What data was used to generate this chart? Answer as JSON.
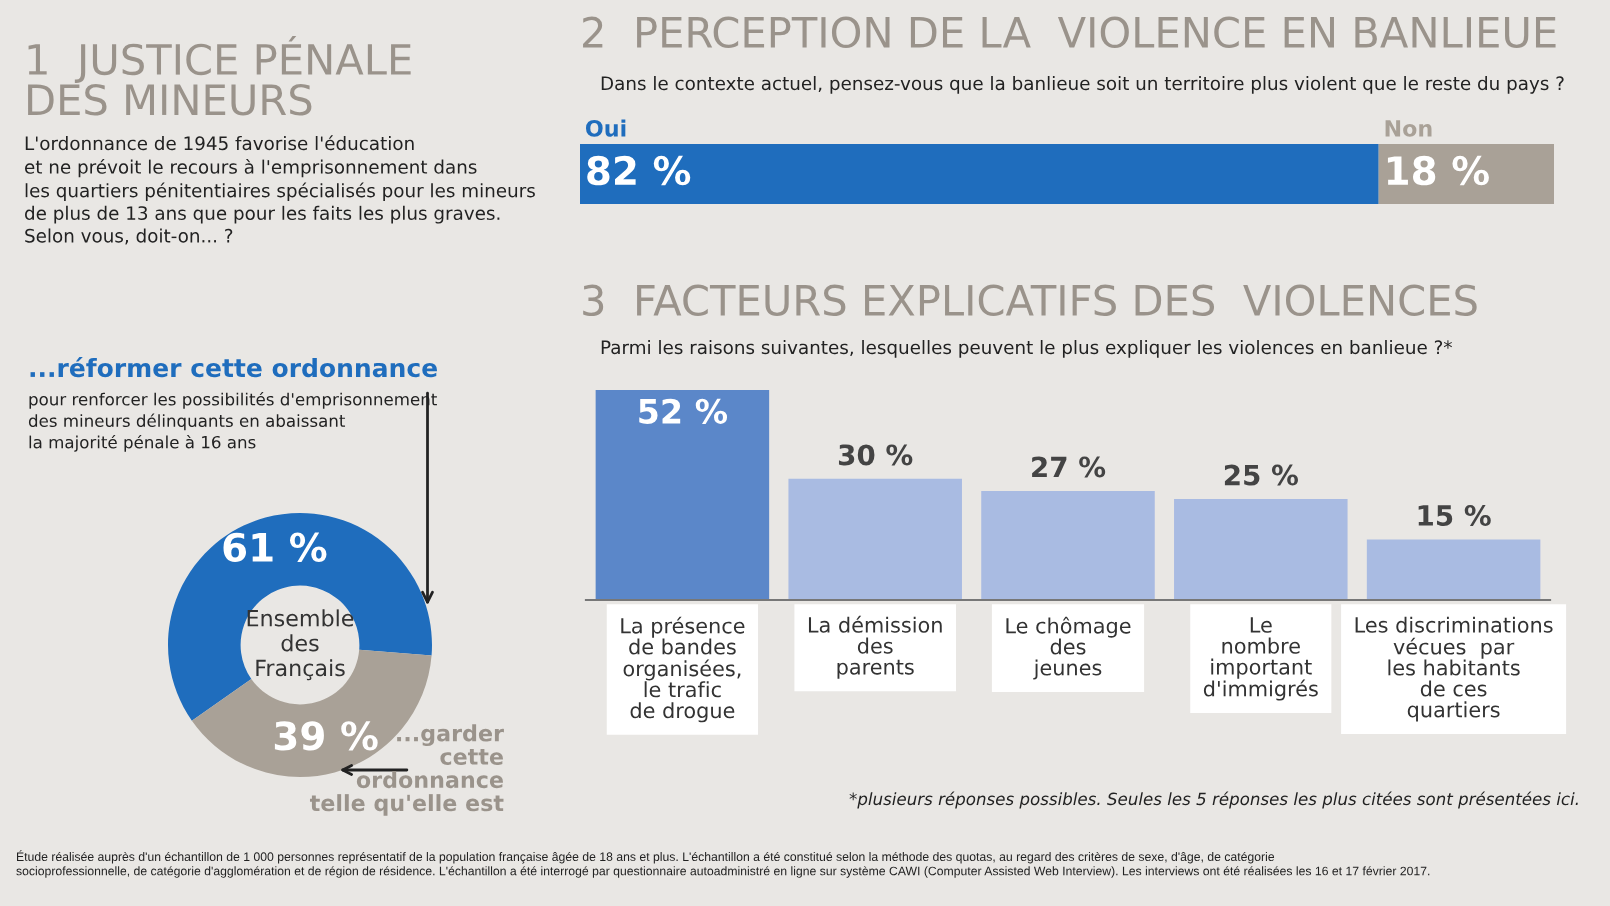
{
  "chart_data": [
    {
      "type": "donut",
      "title": "1  JUSTICE PÉNALE\nDES MINEURS",
      "subtitle": "L'ordonnance de 1945 favorise l'éducation\net ne prévoit le recours à l'emprisonnement dans\nles quartiers pénitentiaires spécialisés pour les mineurs\nde plus de 13 ans que pour les faits les plus graves.\nSelon vous, doit-on... ?",
      "categories": [
        "...réformer cette ordonnance",
        "...garder\ncette\nordonnance\ntelle qu'elle est"
      ],
      "values": [
        61,
        39
      ],
      "colors": [
        "#1f6dbd",
        "#a9a197"
      ],
      "value_labels": [
        "61 %",
        "39 %"
      ],
      "annotations": [
        "pour renforcer les possibilités d'emprisonnement\ndes mineurs délinquants en abaissant\nla majorité pénale à 16 ans",
        "Ensemble\ndes\nFrançais"
      ],
      "legend": false
    },
    {
      "type": "bar",
      "orientation": "horizontal",
      "stacked": true,
      "title": "2  PERCEPTION DE LA  VIOLENCE EN BANLIEUE",
      "subtitle": "Dans le contexte actuel, pensez-vous que la banlieue soit un territoire plus violent que le reste du pays ?",
      "categories": [
        null
      ],
      "series": [
        {
          "name": "Oui",
          "color": "#1f6dbd",
          "values": [
            82
          ],
          "value_labels": [
            "82 %"
          ]
        },
        {
          "name": "Non",
          "color": "#a9a197",
          "values": [
            18
          ],
          "value_labels": [
            "18 %"
          ]
        }
      ],
      "legend": false
    },
    {
      "type": "bar",
      "title": "3  FACTEURS EXPLICATIFS DES  VIOLENCES",
      "subtitle": "Parmi les raisons suivantes, lesquelles peuvent le plus expliquer les violences en banlieue ?*",
      "categories": [
        "La présence\nde bandes\norganisées,\nle trafic\nde drogue",
        "La démission\ndes\nparents",
        "Le chômage\ndes\njeunes",
        "Le\nnombre\nimportant\nd'immigrés",
        "Les discriminations\nvécues  par\nles habitants\nde ces\nquartiers"
      ],
      "values": [
        52,
        30,
        27,
        25,
        15
      ],
      "colors": [
        "#5b87c9",
        "#a9bbe2",
        "#a9bbe2",
        "#a9bbe2",
        "#a9bbe2"
      ],
      "value_labels": [
        "52 %",
        "30 %",
        "27 %",
        "25 %",
        "15 %"
      ],
      "annotations": [
        "*plusieurs réponses possibles. Seules les 5 réponses les plus citées sont présentées ici.",
        "Étude réalisée auprès d'un échantillon de 1 000 personnes représentatif de la population française âgée de 18 ans et plus. L'échantillon a été constitué selon la méthode des quotas, au regard des critères de sexe, d'âge, de catégorie\nsocioprofessionnelle, de catégorie d'agglomération et de région de résidence. L'échantillon a été interrogé par questionnaire autoadministré en ligne sur système CAWI (Computer Assisted Web Interview). Les interviews ont été réalisées les 16 et 17 février 2017."
      ],
      "legend": false
    }
  ]
}
